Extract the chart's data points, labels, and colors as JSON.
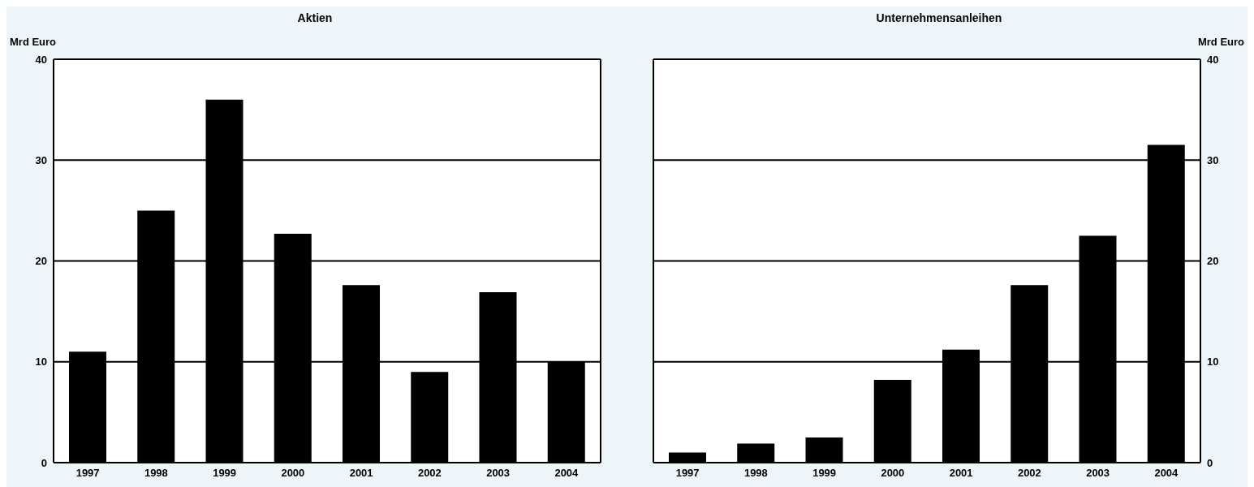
{
  "chart_data": [
    {
      "type": "bar",
      "title": "Aktien",
      "ylabel": "Mrd Euro",
      "categories": [
        "1997",
        "1998",
        "1999",
        "2000",
        "2001",
        "2002",
        "2003",
        "2004"
      ],
      "values": [
        11,
        25,
        36,
        22.7,
        17.6,
        9,
        16.9,
        10
      ],
      "color": "#000000",
      "ylim": [
        0,
        40
      ],
      "yticks": [
        0,
        10,
        20,
        30,
        40
      ],
      "grid": "y"
    },
    {
      "type": "bar",
      "title": "Unternehmensanleihen",
      "y2label": "Mrd Euro",
      "categories": [
        "1997",
        "1998",
        "1999",
        "2000",
        "2001",
        "2002",
        "2003",
        "2004"
      ],
      "series": [
        {
          "color": "#000000",
          "axis": "y2",
          "values": [
            1,
            1.9,
            2.5,
            8.2,
            11.2,
            17.6,
            22.5,
            31.5
          ]
        }
      ],
      "y2lim": [
        0,
        40
      ],
      "y2ticks": [
        0,
        10,
        20,
        30,
        40
      ],
      "grid": "y"
    }
  ]
}
